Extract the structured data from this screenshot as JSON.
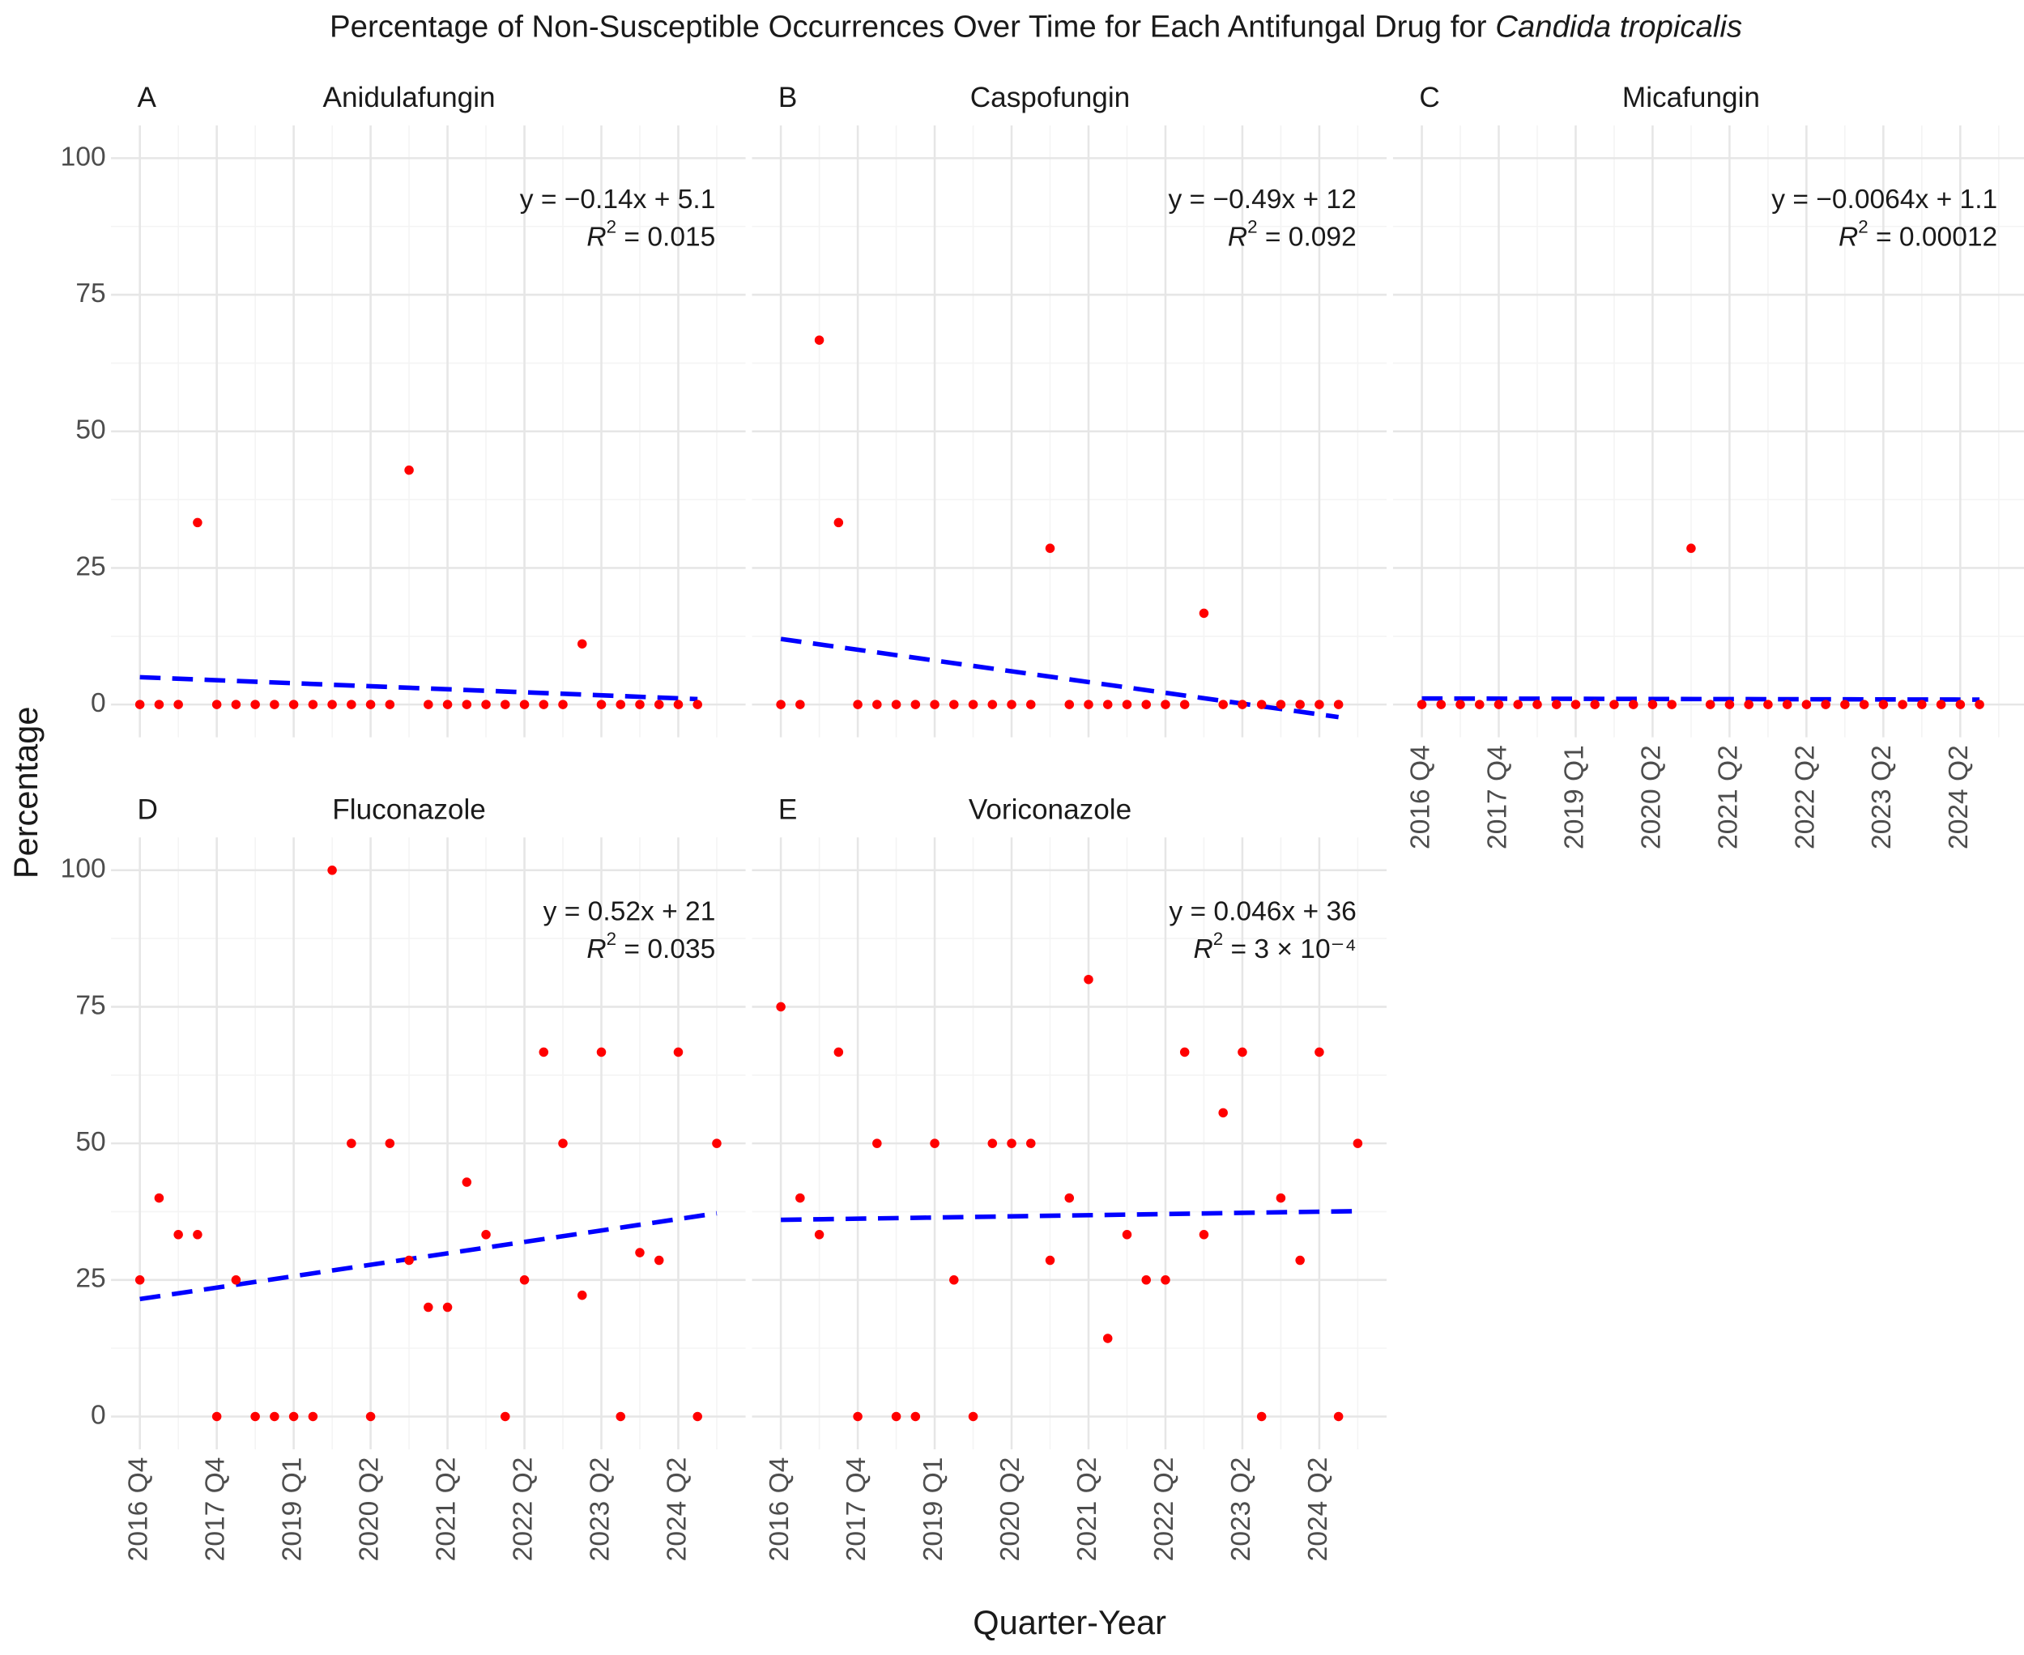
{
  "title": "Percentage of Non-Susceptible Occurrences Over Time for Each Antifungal Drug for ",
  "title_species": "Candida tropicalis",
  "x_label": "Quarter-Year",
  "y_label": "Percentage",
  "r2_symbol": "R",
  "r2_exponent": "2",
  "categories": [
    "2016 Q4",
    null,
    null,
    null,
    "2017 Q4",
    null,
    null,
    null,
    "2019 Q1",
    null,
    null,
    null,
    "2020 Q2",
    null,
    null,
    null,
    "2021 Q2",
    null,
    null,
    null,
    "2022 Q2",
    null,
    null,
    null,
    "2023 Q2",
    null,
    null,
    null,
    "2024 Q2",
    null,
    null
  ],
  "xticks": [
    0,
    4,
    8,
    12,
    16,
    20,
    24,
    28
  ],
  "x_minor_ticks": [
    2,
    6,
    10,
    14,
    18,
    22,
    26,
    30
  ],
  "xlim": [
    -1.5,
    31.5
  ],
  "ylim": [
    -6,
    106
  ],
  "yticks": [
    0,
    25,
    50,
    75,
    100
  ],
  "y_minor_ticks": [
    12.5,
    37.5,
    62.5,
    87.5
  ],
  "grid": true,
  "point_color": "#ff0000",
  "trend_color": "#0000ff",
  "chart_data": [
    {
      "type": "scatter",
      "panel": "A",
      "title": "Anidulafungin",
      "values": [
        0,
        0,
        0,
        33.3,
        0,
        0,
        0,
        0,
        0,
        0,
        0,
        0,
        0,
        0,
        42.9,
        0,
        0,
        0,
        0,
        0,
        0,
        0,
        0,
        11.1,
        0,
        0,
        0,
        0,
        0,
        0,
        null
      ],
      "trend": {
        "x": [
          0,
          29
        ],
        "values": [
          5.0,
          1.0
        ]
      },
      "equation": "y = −0.14x + 5.1",
      "r2_value": " = 0.015"
    },
    {
      "type": "scatter",
      "panel": "B",
      "title": "Caspofungin",
      "values": [
        0,
        0,
        66.7,
        33.3,
        0,
        0,
        0,
        0,
        0,
        0,
        0,
        0,
        0,
        0,
        28.6,
        0,
        0,
        0,
        0,
        0,
        0,
        0,
        16.7,
        0,
        0,
        0,
        0,
        0,
        0,
        0,
        null
      ],
      "trend": {
        "x": [
          0,
          29
        ],
        "values": [
          12,
          -2.3
        ]
      },
      "equation": "y = −0.49x + 12",
      "r2_value": " = 0.092"
    },
    {
      "type": "scatter",
      "panel": "C",
      "title": "Micafungin",
      "values": [
        0,
        0,
        0,
        0,
        0,
        0,
        0,
        0,
        0,
        0,
        0,
        0,
        0,
        0,
        28.6,
        0,
        0,
        0,
        0,
        0,
        0,
        0,
        0,
        0,
        0,
        0,
        0,
        0,
        0,
        0,
        null
      ],
      "trend": {
        "x": [
          0,
          29
        ],
        "values": [
          1.1,
          0.9
        ]
      },
      "equation": "y = −0.0064x + 1.1",
      "r2_value": " = 0.00012"
    },
    {
      "type": "scatter",
      "panel": "D",
      "title": "Fluconazole",
      "values": [
        25,
        40,
        33.3,
        33.3,
        0,
        25,
        0,
        0,
        0,
        0,
        100,
        50,
        0,
        50,
        28.6,
        20,
        20,
        42.9,
        33.3,
        0,
        25,
        66.7,
        50,
        22.2,
        66.7,
        0,
        30,
        28.6,
        66.7,
        0,
        50
      ],
      "trend": {
        "x": [
          0,
          30
        ],
        "values": [
          21.5,
          37.2
        ]
      },
      "equation": "y = 0.52x + 21",
      "r2_value": " = 0.035"
    },
    {
      "type": "scatter",
      "panel": "E",
      "title": "Voriconazole",
      "values": [
        75,
        40,
        33.3,
        66.7,
        0,
        50,
        0,
        0,
        50,
        25,
        0,
        50,
        50,
        50,
        28.6,
        40,
        80,
        14.3,
        33.3,
        25,
        25,
        66.7,
        33.3,
        55.6,
        66.7,
        0,
        40,
        28.6,
        66.7,
        0,
        50
      ],
      "trend": {
        "x": [
          0,
          30
        ],
        "values": [
          36,
          37.6
        ]
      },
      "equation": "y = 0.046x + 36",
      "r2_value": " = 3 × 10⁻⁴"
    }
  ]
}
